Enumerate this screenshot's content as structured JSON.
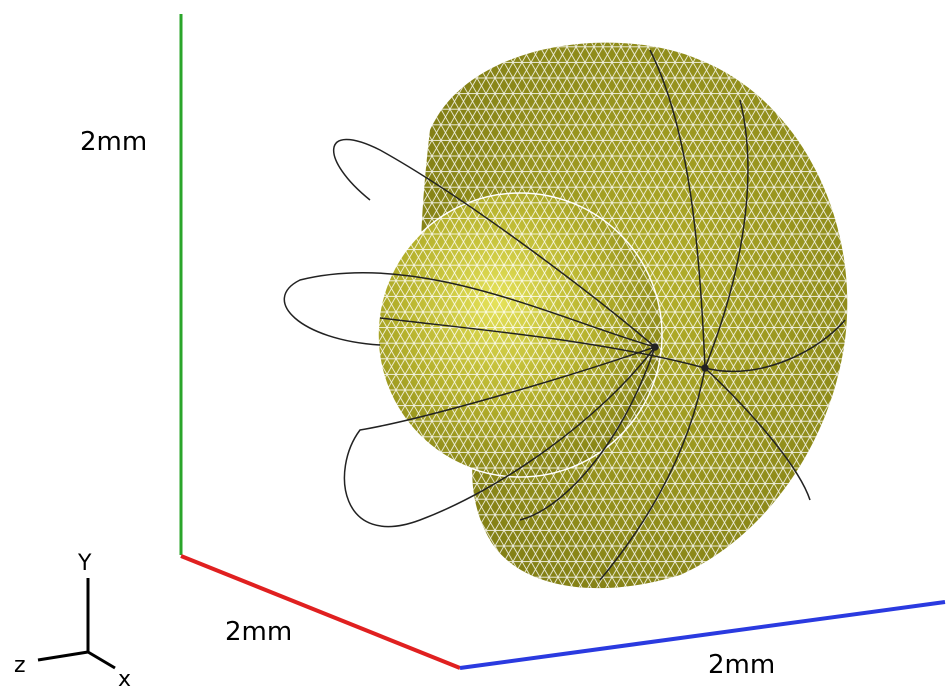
{
  "scale_labels": {
    "vertical": "2mm",
    "depth": "2mm",
    "horizontal": "2mm"
  },
  "triad": {
    "y": "Y",
    "z": "z",
    "x": "x"
  }
}
